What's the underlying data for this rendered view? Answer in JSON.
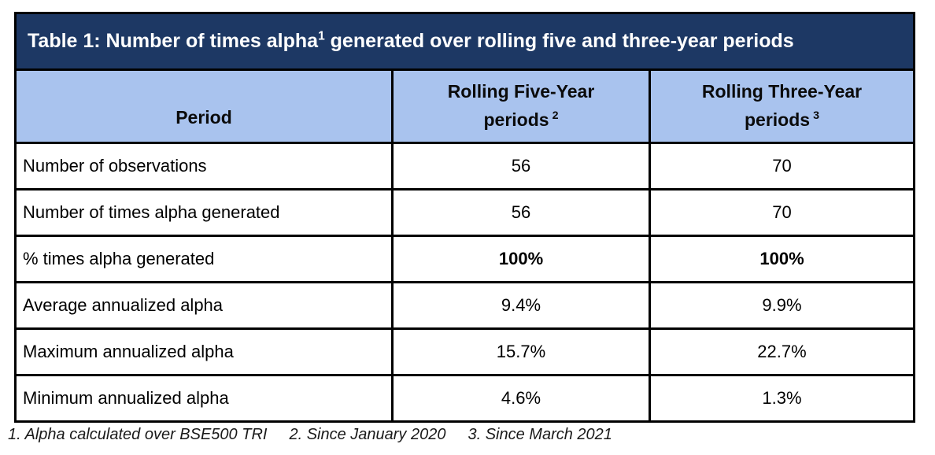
{
  "title": {
    "text": "Table 1: Number of times alpha",
    "sup": "1",
    "rest": "generated over rolling five and three-year periods"
  },
  "table": {
    "columns": [
      {
        "label": "Period"
      },
      {
        "line1": "Rolling Five-Year",
        "line2": "periods",
        "sup": "2"
      },
      {
        "line1": "Rolling Three-Year",
        "line2": "periods",
        "sup": "3"
      }
    ],
    "rows": [
      {
        "label": "Number of observations",
        "five_year": "56",
        "three_year": "70"
      },
      {
        "label": "Number of times alpha generated",
        "five_year": "56",
        "three_year": "70"
      },
      {
        "label": "% times alpha generated",
        "five_year": "100%",
        "three_year": "100%"
      },
      {
        "label": "Average annualized alpha",
        "five_year": "9.4%",
        "three_year": "9.9%"
      },
      {
        "label": "Maximum annualized alpha",
        "five_year": "15.7%",
        "three_year": "22.7%"
      },
      {
        "label": "Minimum annualized alpha",
        "five_year": "4.6%",
        "three_year": "1.3%"
      }
    ]
  },
  "footnotes": [
    "1. Alpha calculated over BSE500 TRI",
    "2. Since January 2020",
    "3. Since March 2021"
  ],
  "colors": {
    "title_bar_navy": "#1D3864",
    "header_row_blue": "#A9C3EE",
    "border_black": "#000000",
    "title_text_white": "#FFFFFF",
    "body_text_black": "#000000"
  }
}
